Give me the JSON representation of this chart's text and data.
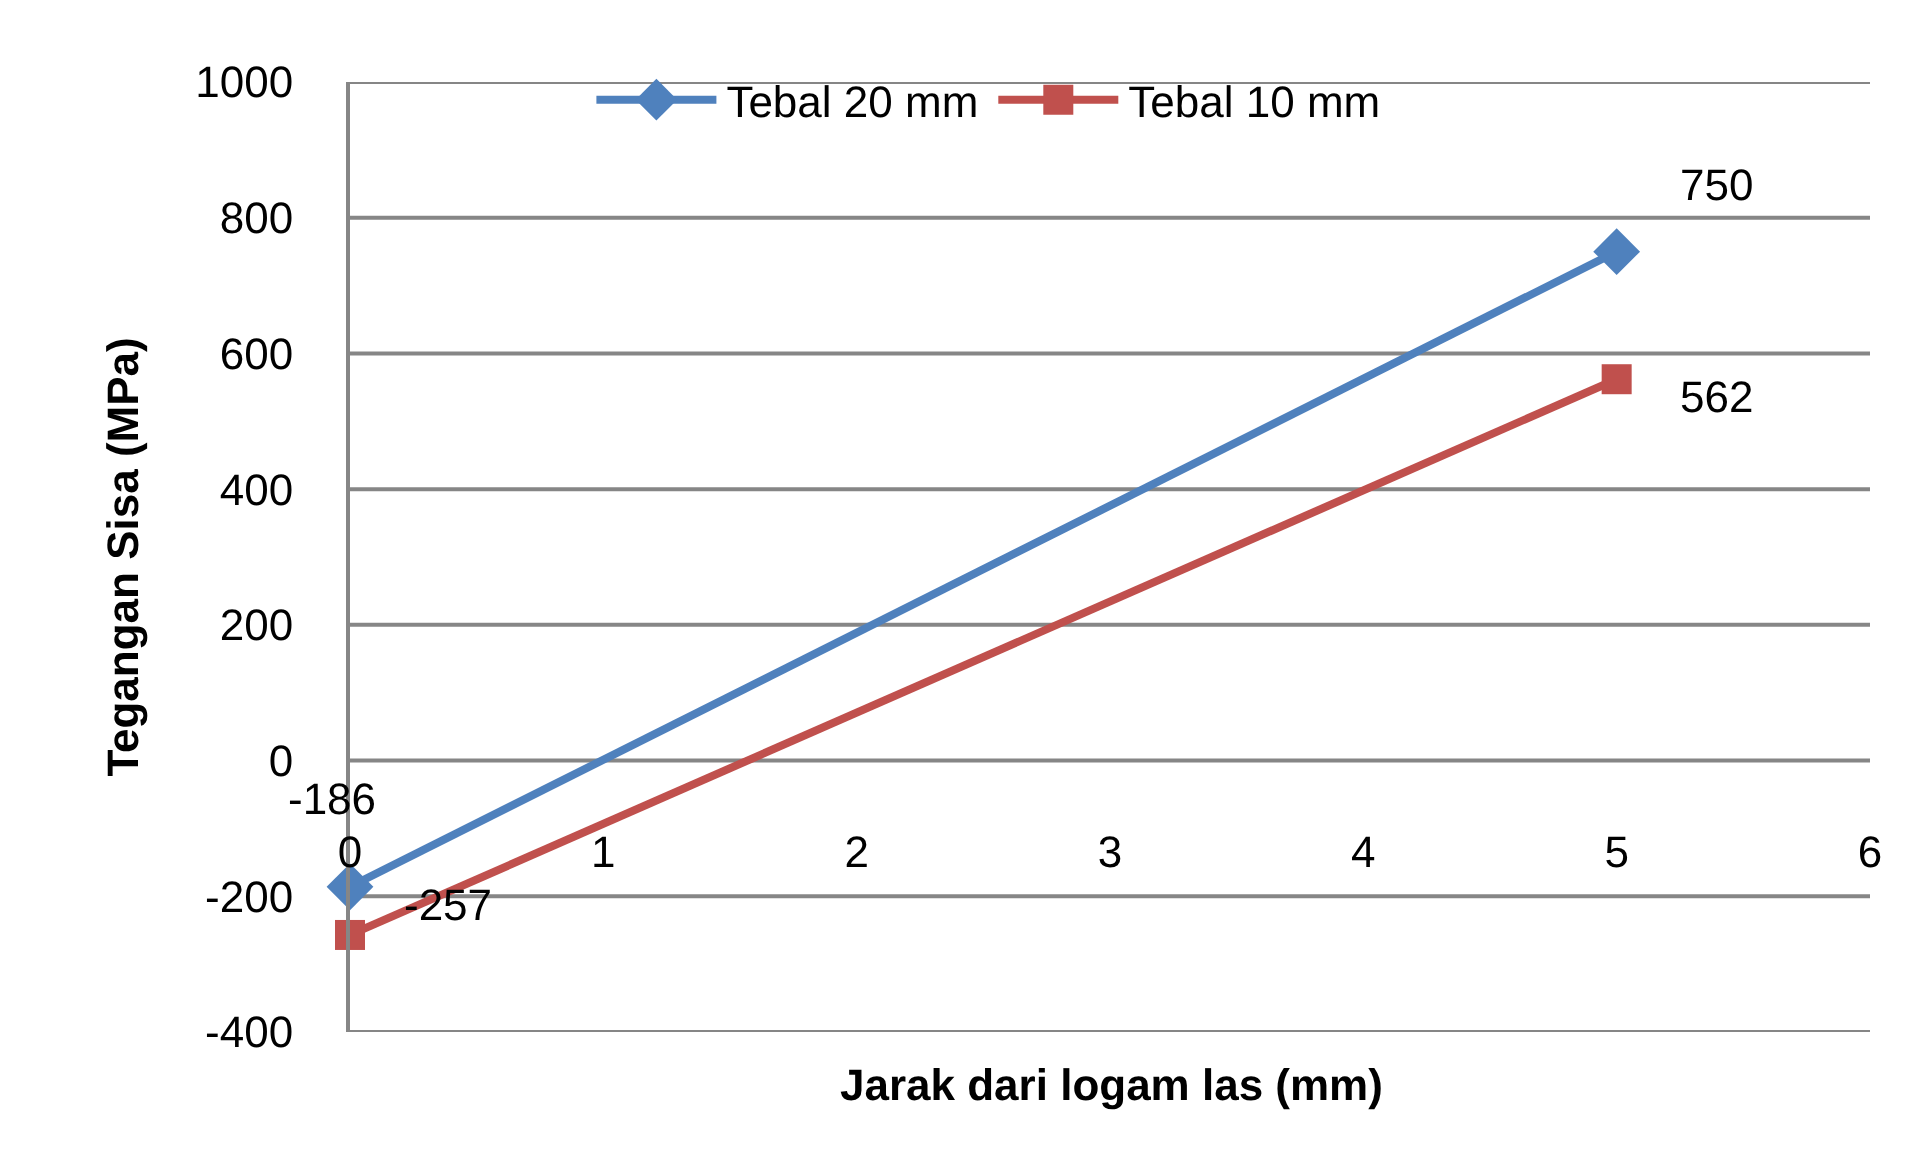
{
  "chart_data": {
    "type": "line",
    "xlabel": "Jarak dari logam las (mm)",
    "ylabel": "Tegangan Sisa (MPa)",
    "x": [
      0,
      5
    ],
    "series": [
      {
        "name": "Tebal 20 mm",
        "color": "#4f81bd",
        "marker": "diamond",
        "values": [
          -186,
          750
        ]
      },
      {
        "name": "Tebal 10 mm",
        "color": "#c0504d",
        "marker": "square",
        "values": [
          -257,
          562
        ]
      }
    ],
    "xlim": [
      0,
      6
    ],
    "xticks": [
      0,
      1,
      2,
      3,
      4,
      5,
      6
    ],
    "ylim": [
      -400,
      1000
    ],
    "yticks": [
      -400,
      -200,
      0,
      200,
      400,
      600,
      800,
      1000
    ],
    "grid": "y",
    "legend": "top",
    "data_labels": true,
    "line_style": "solid"
  }
}
